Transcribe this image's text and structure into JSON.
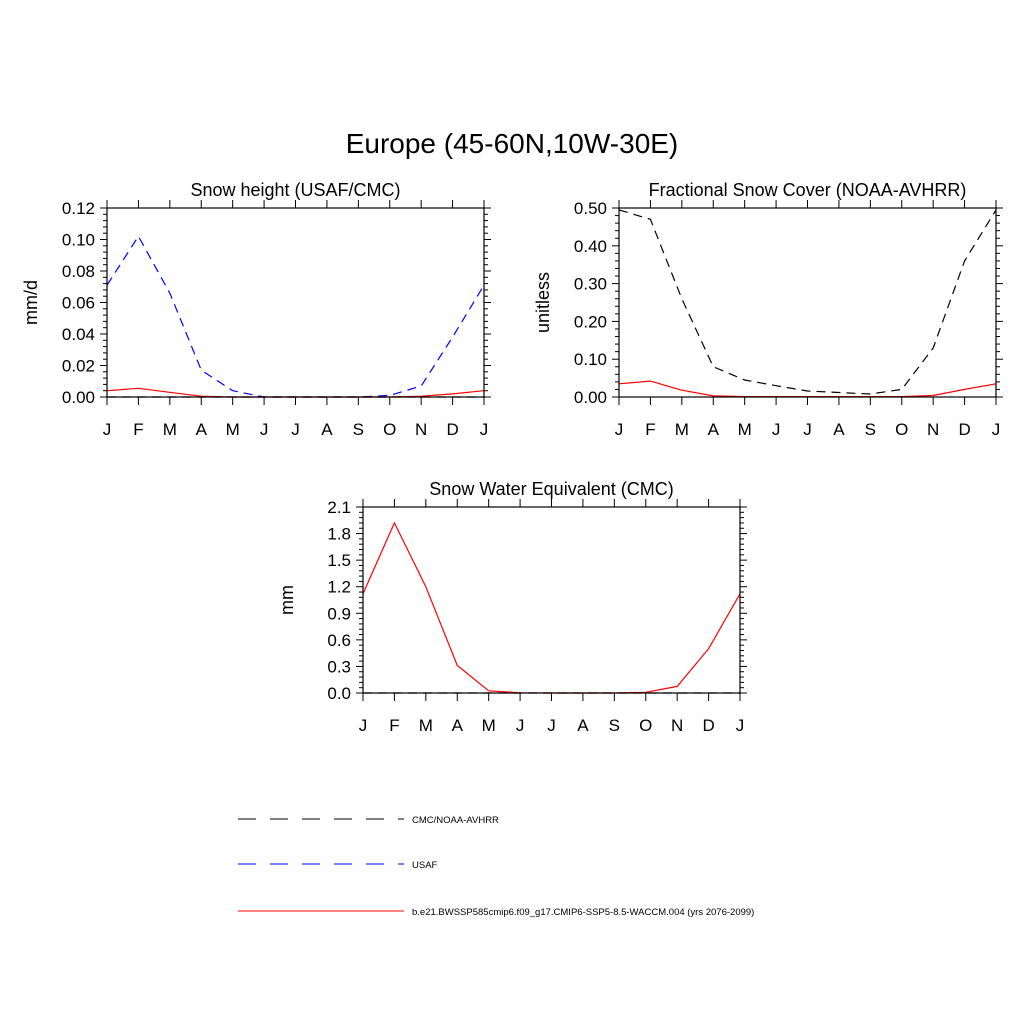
{
  "title": "Europe (45-60N,10W-30E)",
  "colors": {
    "model": "#ff0000",
    "usaf": "#0000ff",
    "obs": "#000000"
  },
  "chart_data": [
    {
      "type": "line",
      "title": "Snow height (USAF/CMC)",
      "ylabel": "mm/d",
      "ylim": [
        0,
        0.12
      ],
      "yticks": [
        "0.00",
        "0.02",
        "0.04",
        "0.06",
        "0.08",
        "0.10",
        "0.12"
      ],
      "categories": [
        "J",
        "F",
        "M",
        "A",
        "M",
        "J",
        "J",
        "A",
        "S",
        "O",
        "N",
        "D",
        "J"
      ],
      "series": [
        {
          "name": "USAF",
          "style": "dashed",
          "color": "#0000ff",
          "values": [
            0.071,
            0.102,
            0.066,
            0.017,
            0.004,
            0.0,
            0.0,
            0.0,
            0.0,
            0.001,
            0.007,
            0.038,
            0.071
          ]
        },
        {
          "name": "CMC/NOAA-AVHRR",
          "style": "dashed",
          "color": "#000000",
          "values": [
            0,
            0,
            0,
            0,
            0,
            0,
            0,
            0,
            0,
            0,
            0,
            0,
            0
          ]
        },
        {
          "name": "b.e21.BWSSP585cmip6.f09_g17.CMIP6-SSP5-8.5-WACCM.004 (yrs 2076-2099)",
          "style": "solid",
          "color": "#ff0000",
          "values": [
            0.004,
            0.0055,
            0.003,
            0.0005,
            0.0,
            0.0,
            0.0,
            0.0,
            0.0,
            0.0,
            0.0005,
            0.002,
            0.004
          ]
        }
      ]
    },
    {
      "type": "line",
      "title": "Fractional Snow Cover (NOAA-AVHRR)",
      "ylabel": "unitless",
      "ylim": [
        0,
        0.5
      ],
      "yticks": [
        "0.00",
        "0.10",
        "0.20",
        "0.30",
        "0.40",
        "0.50"
      ],
      "categories": [
        "J",
        "F",
        "M",
        "A",
        "M",
        "J",
        "J",
        "A",
        "S",
        "O",
        "N",
        "D",
        "J"
      ],
      "series": [
        {
          "name": "CMC/NOAA-AVHRR",
          "style": "dashed",
          "color": "#000000",
          "values": [
            0.495,
            0.47,
            0.26,
            0.08,
            0.045,
            0.03,
            0.016,
            0.012,
            0.008,
            0.02,
            0.13,
            0.36,
            0.495
          ]
        },
        {
          "name": "b.e21.BWSSP585cmip6.f09_g17.CMIP6-SSP5-8.5-WACCM.004 (yrs 2076-2099)",
          "style": "solid",
          "color": "#ff0000",
          "values": [
            0.035,
            0.042,
            0.018,
            0.003,
            0.001,
            0.001,
            0.001,
            0.001,
            0.001,
            0.001,
            0.004,
            0.02,
            0.035
          ]
        }
      ]
    },
    {
      "type": "line",
      "title": "Snow Water Equivalent (CMC)",
      "ylabel": "mm",
      "ylim": [
        0,
        2.1
      ],
      "yticks": [
        "0.0",
        "0.3",
        "0.6",
        "0.9",
        "1.2",
        "1.5",
        "1.8",
        "2.1"
      ],
      "categories": [
        "J",
        "F",
        "M",
        "A",
        "M",
        "J",
        "J",
        "A",
        "S",
        "O",
        "N",
        "D",
        "J"
      ],
      "series": [
        {
          "name": "CMC/NOAA-AVHRR",
          "style": "dashed",
          "color": "#000000",
          "values": [
            0,
            0,
            0,
            0,
            0,
            0,
            0,
            0,
            0,
            0,
            0,
            0,
            0
          ]
        },
        {
          "name": "b.e21.BWSSP585cmip6.f09_g17.CMIP6-SSP5-8.5-WACCM.004 (yrs 2076-2099)",
          "style": "solid",
          "color": "#ff0000",
          "values": [
            1.12,
            1.92,
            1.2,
            0.31,
            0.025,
            0.002,
            0.0,
            0.0,
            0.0,
            0.008,
            0.075,
            0.5,
            1.12
          ]
        }
      ]
    }
  ],
  "legend": [
    {
      "label": "CMC/NOAA-AVHRR",
      "style": "dashed",
      "color": "#000000"
    },
    {
      "label": "USAF",
      "style": "dashed",
      "color": "#0000ff"
    },
    {
      "label": "b.e21.BWSSP585cmip6.f09_g17.CMIP6-SSP5-8.5-WACCM.004 (yrs 2076-2099)",
      "style": "solid",
      "color": "#ff0000"
    }
  ]
}
